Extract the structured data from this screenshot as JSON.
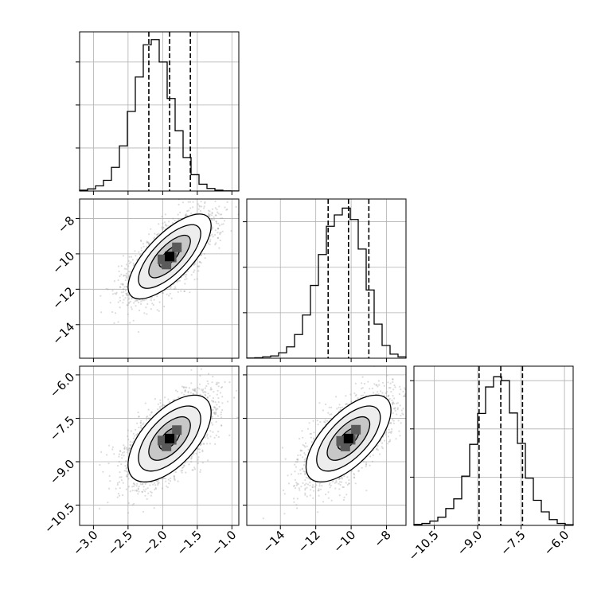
{
  "chart_data": {
    "type": "corner",
    "style": {
      "grid": true,
      "quantile_linestyle": "dashed",
      "contour_fill_colors": [
        "#ffffff",
        "#ededed",
        "#c7c7c7",
        "#939393",
        "#5a5a5a"
      ],
      "scatter_color": "#9a9a9a",
      "line_color": "#000000"
    },
    "params": [
      {
        "range": [
          -3.2,
          -0.9
        ],
        "ticks": [
          -3.0,
          -2.5,
          -2.0,
          -1.5,
          -1.0
        ],
        "tick_labels": [
          "−3.0",
          "−2.5",
          "−2.0",
          "−1.5",
          "−1.0"
        ],
        "mean": -1.9,
        "std": 0.3,
        "quantiles": [
          -2.2,
          -1.9,
          -1.6
        ]
      },
      {
        "range": [
          -15.9,
          -6.9
        ],
        "ticks": [
          -14,
          -12,
          -10,
          -8
        ],
        "tick_labels": [
          "−14",
          "−12",
          "−10",
          "−8"
        ],
        "mean": -10.15,
        "std": 1.2,
        "quantiles": [
          -11.3,
          -10.15,
          -9.0
        ]
      },
      {
        "range": [
          -11.2,
          -5.7
        ],
        "ticks": [
          -10.5,
          -9.0,
          -7.5,
          -6.0
        ],
        "tick_labels": [
          "−10.5",
          "−9.0",
          "−7.5",
          "−6.0"
        ],
        "mean": -8.2,
        "std": 0.75,
        "quantiles": [
          -8.95,
          -8.2,
          -7.45
        ]
      }
    ],
    "histograms": [
      {
        "param": 0,
        "bin_edges": [
          -3.2,
          -3.085,
          -2.97,
          -2.855,
          -2.74,
          -2.625,
          -2.51,
          -2.395,
          -2.28,
          -2.165,
          -2.05,
          -1.935,
          -1.82,
          -1.705,
          -1.59,
          -1.475,
          -1.36,
          -1.245,
          -1.13,
          -1.015,
          -0.9
        ],
        "counts": [
          2,
          5,
          12,
          25,
          55,
          105,
          185,
          265,
          340,
          352,
          300,
          215,
          140,
          78,
          38,
          16,
          6,
          2,
          0.5,
          0.3
        ],
        "ylim": [
          0,
          370
        ],
        "yticks": [
          100,
          200,
          300
        ]
      },
      {
        "param": 1,
        "bin_edges": [
          -15.9,
          -15.45,
          -15.0,
          -14.55,
          -14.1,
          -13.65,
          -13.2,
          -12.75,
          -12.3,
          -11.85,
          -11.4,
          -10.95,
          -10.5,
          -10.05,
          -9.6,
          -9.15,
          -8.7,
          -8.25,
          -7.8,
          -7.35,
          -6.9
        ],
        "counts": [
          0.5,
          1,
          3,
          5,
          12,
          25,
          52,
          95,
          160,
          228,
          290,
          315,
          330,
          305,
          240,
          150,
          75,
          28,
          9,
          3
        ],
        "ylim": [
          0,
          350
        ],
        "yticks": [
          100,
          200,
          300
        ]
      },
      {
        "param": 2,
        "bin_edges": [
          -11.2,
          -10.925,
          -10.65,
          -10.375,
          -10.1,
          -9.825,
          -9.55,
          -9.275,
          -9.0,
          -8.725,
          -8.45,
          -8.175,
          -7.9,
          -7.625,
          -7.35,
          -7.075,
          -6.8,
          -6.525,
          -6.25,
          -5.975,
          -5.7
        ],
        "counts": [
          2,
          4,
          9,
          17,
          35,
          55,
          102,
          168,
          232,
          287,
          308,
          300,
          233,
          170,
          98,
          52,
          28,
          12,
          4,
          1.5
        ],
        "ylim": [
          0,
          330
        ],
        "yticks": [
          100,
          200,
          300
        ]
      }
    ],
    "pairs": [
      {
        "x_param": 0,
        "y_param": 1,
        "correlation": 0.72
      },
      {
        "x_param": 0,
        "y_param": 2,
        "correlation": 0.6
      },
      {
        "x_param": 1,
        "y_param": 2,
        "correlation": 0.65
      }
    ],
    "contour_levels_sigma": [
      0.5,
      1.0,
      1.5,
      2.0
    ],
    "scatter_samples_per_panel": 2200
  }
}
